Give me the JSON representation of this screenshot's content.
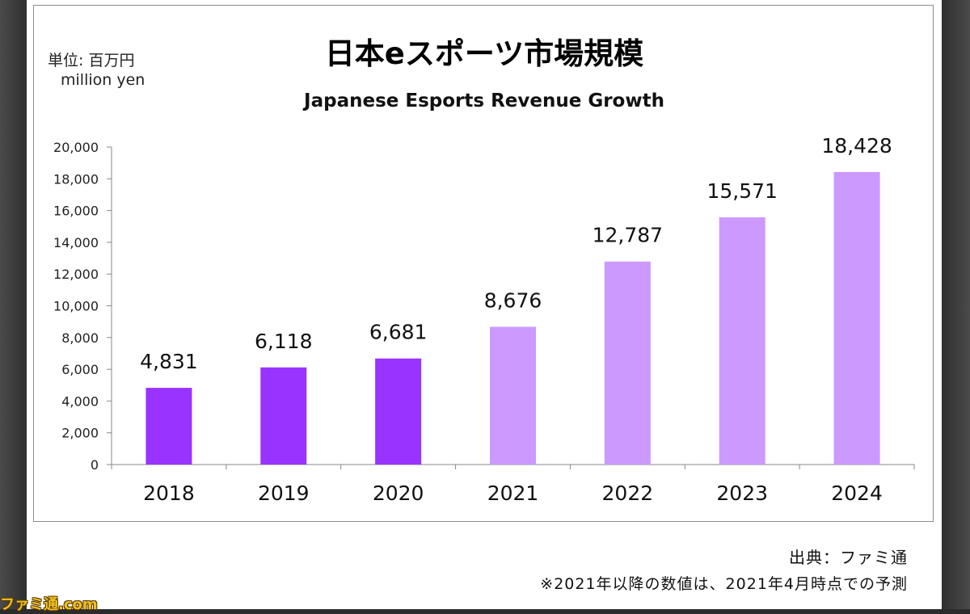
{
  "header": {
    "unit_jp": "単位: 百万円",
    "unit_en": "million yen",
    "title_jp": "日本eスポーツ市場規模"
  },
  "footer": {
    "source": "出典：ファミ通",
    "note": "※2021年以降の数値は、2021年4月時点での予測"
  },
  "watermark": "ファミ通.com",
  "chart_data": {
    "type": "bar",
    "title": "Japanese Esports Revenue Growth",
    "xlabel": "",
    "ylabel": "",
    "categories": [
      "2018",
      "2019",
      "2020",
      "2021",
      "2022",
      "2023",
      "2024"
    ],
    "values": [
      4831,
      6118,
      6681,
      8676,
      12787,
      15571,
      18428
    ],
    "value_labels": [
      "4,831",
      "6,118",
      "6,681",
      "8,676",
      "12,787",
      "15,571",
      "18,428"
    ],
    "ylim": [
      0,
      20000
    ],
    "yticks": [
      0,
      2000,
      4000,
      6000,
      8000,
      10000,
      12000,
      14000,
      16000,
      18000,
      20000
    ],
    "ytick_labels": [
      "0",
      "2,000",
      "4,000",
      "6,000",
      "8,000",
      "10,000",
      "12,000",
      "14,000",
      "16,000",
      "18,000",
      "20,000"
    ],
    "grid": false,
    "legend": "none",
    "colors": {
      "actual": "#9933ff",
      "forecast": "#cc99ff"
    },
    "bar_status": [
      "actual",
      "actual",
      "actual",
      "forecast",
      "forecast",
      "forecast",
      "forecast"
    ]
  }
}
